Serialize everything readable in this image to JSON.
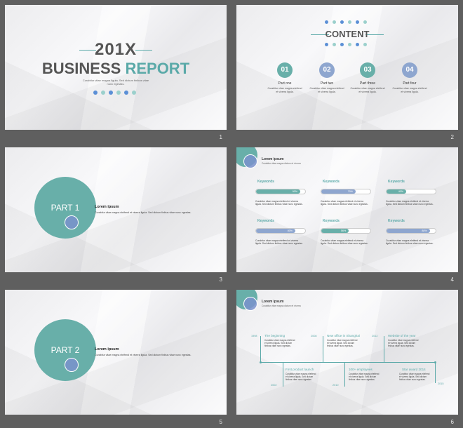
{
  "slides": [
    {
      "number": "1",
      "year": "201X",
      "title_a": "BUSINESS",
      "title_b": "REPORT",
      "subtitle": "Curabitur vitae magna ligula. Sed dictum finibus vitae nunc egestas."
    },
    {
      "number": "2",
      "title": "CONTENT",
      "parts": [
        {
          "num": "01",
          "title": "Part one",
          "desc": "Curabitur vitae magna eleifend et viverra ligula."
        },
        {
          "num": "02",
          "title": "Part two",
          "desc": "Curabitur vitae magna eleifend et viverra ligula."
        },
        {
          "num": "03",
          "title": "Part three",
          "desc": "Curabitur vitae magna eleifend et viverra ligula."
        },
        {
          "num": "04",
          "title": "Part four",
          "desc": "Curabitur vitae magna eleifend et viverra ligula."
        }
      ]
    },
    {
      "number": "3",
      "part": "PART 1",
      "heading": "Lorem ipsum",
      "desc": "Curabitur vitae magna eleifend et viverra ligula. Sed dictum finibus vitae nunc egestas."
    },
    {
      "number": "4",
      "heading": "Lorem ipsum",
      "subheading": "Curabitur vitae magna dictum et viverra",
      "keywords": [
        {
          "label": "Keywords",
          "value": 0.9,
          "value_label": "90%",
          "color": "#68afa9",
          "desc": "Curabitur vitae magna eleifend et viverra ligula. Sed dictum finibus vitae nunc egestas."
        },
        {
          "label": "Keywords",
          "value": 0.7,
          "value_label": "70%",
          "color": "#8ea6cf",
          "desc": "Curabitur vitae magna eleifend et viverra ligula. Sed dictum finibus vitae nunc egestas."
        },
        {
          "label": "Keywords",
          "value": 0.4,
          "value_label": "40%",
          "color": "#68afa9",
          "desc": "Curabitur vitae magna eleifend et viverra ligula. Sed dictum finibus vitae nunc egestas."
        },
        {
          "label": "Keywords",
          "value": 0.8,
          "value_label": "80%",
          "color": "#8ea6cf",
          "desc": "Curabitur vitae magna eleifend et viverra ligula. Sed dictum finibus vitae nunc egestas."
        },
        {
          "label": "Keywords",
          "value": 0.56,
          "value_label": "56%",
          "color": "#68afa9",
          "desc": "Curabitur vitae magna eleifend et viverra ligula. Sed dictum finibus vitae nunc egestas."
        },
        {
          "label": "Keywords",
          "value": 0.88,
          "value_label": "88%",
          "color": "#8ea6cf",
          "desc": "Curabitur vitae magna eleifend et viverra ligula. Sed dictum finibus vitae nunc egestas."
        }
      ]
    },
    {
      "number": "5",
      "part": "PART 2",
      "heading": "Lorem ipsum",
      "desc": "Curabitur vitae magna eleifend et viverra ligula. Sed dictum finibus vitae nunc egestas."
    },
    {
      "number": "6",
      "heading": "Lorem ipsum",
      "subheading": "Curabitur vitae magna dictum et viverra",
      "events": [
        {
          "year": "1998",
          "title": "The beginning",
          "desc": "Curabitur vitae magna eleifend et viverra ligula. Sed dictum finibus vitae nunc egestas."
        },
        {
          "year": "2002",
          "title": "First product launch",
          "desc": "Curabitur vitae magna eleifend et viverra ligula. Sed dictum finibus vitae nunc egestas."
        },
        {
          "year": "2008",
          "title": "New office in Shanghai",
          "desc": "Curabitur vitae magna eleifend et viverra ligula. Sed dictum finibus vitae nunc egestas."
        },
        {
          "year": "2010",
          "title": "100+ employees",
          "desc": "Curabitur vitae magna eleifend et viverra ligula. Sed dictum finibus vitae nunc egestas."
        },
        {
          "year": "2012",
          "title": "Website of the year",
          "desc": "Curabitur vitae magna eleifend et viverra ligula. Sed dictum finibus vitae nunc egestas."
        },
        {
          "year": "2015",
          "title": "Star award 2014",
          "desc": "Curabitur vitae magna eleifend et viverra ligula. Sed dictum finibus vitae nunc egestas."
        }
      ]
    }
  ],
  "colors": {
    "teal": "#68afa9",
    "blue": "#8ea6cf",
    "light_teal": "#9bd0cc",
    "text": "#555555"
  }
}
